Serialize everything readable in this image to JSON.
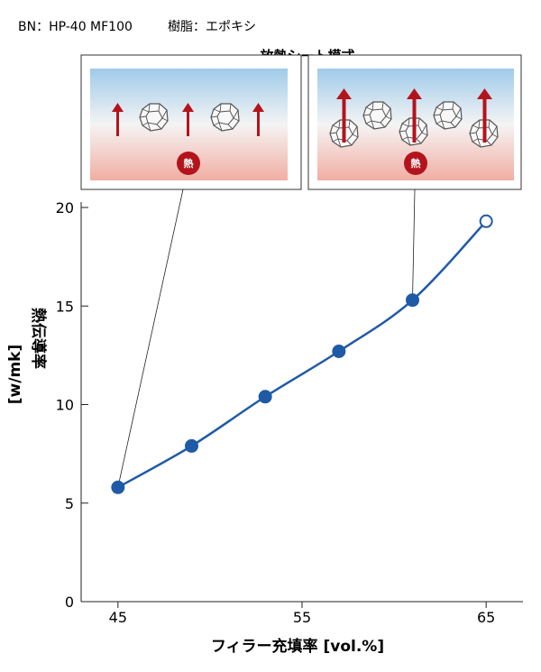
{
  "header": {
    "bn_label": "BN：HP-40 MF100",
    "resin_label": "樹脂：エポキシ"
  },
  "inset": {
    "title": "放熱シート模式",
    "heat_label": "熱"
  },
  "colors": {
    "line": "#1f5aa6",
    "arrow": "#b3141b",
    "heat_badge": "#b3141b"
  },
  "chart_data": {
    "type": "line",
    "xlabel": "フィラー充填率 [vol.%]",
    "ylabel_top": "熱伝導率",
    "ylabel_bottom": "[w/mk]",
    "xlim": [
      43,
      67
    ],
    "ylim": [
      0,
      20
    ],
    "x_ticks": [
      45,
      55,
      65
    ],
    "y_ticks": [
      0,
      5,
      10,
      15,
      20
    ],
    "series": [
      {
        "x": [
          45,
          49,
          53,
          57,
          61,
          65
        ],
        "y": [
          5.8,
          7.9,
          10.4,
          12.7,
          15.3,
          19.3
        ],
        "hollow_last": true
      }
    ]
  }
}
